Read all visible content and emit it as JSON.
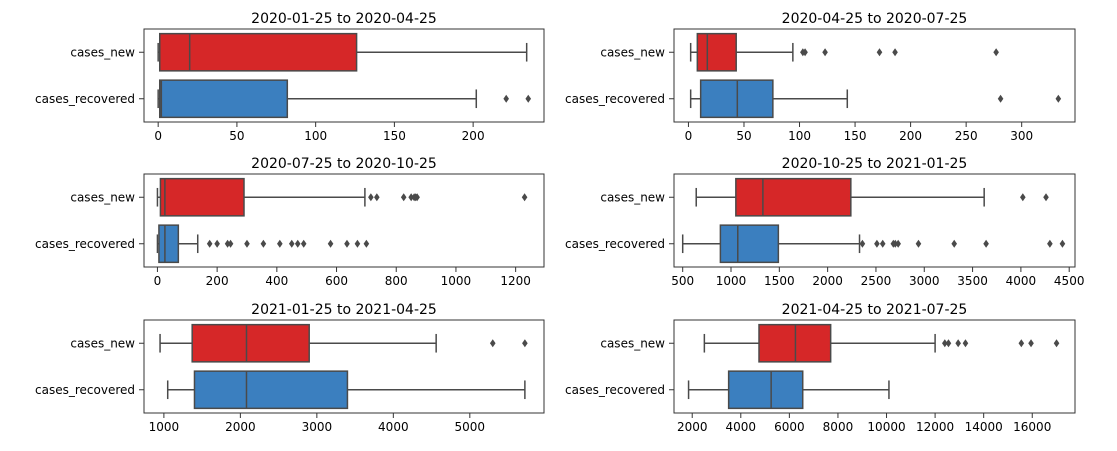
{
  "figure": {
    "category_labels": [
      "cases_new",
      "cases_recovered"
    ]
  },
  "colors": {
    "cases_new": "#d62728",
    "cases_recovered": "#3b7fbf",
    "line": "#4a4a4a",
    "frame": "#333333"
  },
  "chart_data": [
    {
      "type": "box",
      "title": "2020-01-25 to 2020-04-25",
      "xlim": [
        -9,
        245
      ],
      "xticks": [
        0,
        50,
        100,
        150,
        200
      ],
      "grid": false,
      "categories": [
        "cases_new",
        "cases_recovered"
      ],
      "series": [
        {
          "name": "cases_new",
          "min": 0,
          "q1": 1,
          "median": 20,
          "q3": 126,
          "max": 234,
          "outliers": []
        },
        {
          "name": "cases_recovered",
          "min": 0,
          "q1": 1,
          "median": 2,
          "q3": 82,
          "max": 202,
          "outliers": [
            221,
            235
          ]
        }
      ]
    },
    {
      "type": "box",
      "title": "2020-04-25 to 2020-07-25",
      "xlim": [
        -13,
        348
      ],
      "xticks": [
        0,
        50,
        100,
        150,
        200,
        250,
        300
      ],
      "grid": false,
      "categories": [
        "cases_new",
        "cases_recovered"
      ],
      "series": [
        {
          "name": "cases_new",
          "min": 2,
          "q1": 8,
          "median": 17,
          "q3": 43,
          "max": 94,
          "outliers": [
            103,
            105,
            123,
            172,
            186,
            277
          ]
        },
        {
          "name": "cases_recovered",
          "min": 2,
          "q1": 11,
          "median": 44,
          "q3": 76,
          "max": 143,
          "outliers": [
            281,
            333
          ]
        }
      ]
    },
    {
      "type": "box",
      "title": "2020-07-25 to 2020-10-25",
      "xlim": [
        -45,
        1295
      ],
      "xticks": [
        0,
        200,
        400,
        600,
        800,
        1000,
        1200
      ],
      "grid": false,
      "categories": [
        "cases_new",
        "cases_recovered"
      ],
      "series": [
        {
          "name": "cases_new",
          "min": 0,
          "q1": 10,
          "median": 25,
          "q3": 290,
          "max": 695,
          "outliers": [
            715,
            735,
            825,
            850,
            860,
            865,
            870,
            1230
          ]
        },
        {
          "name": "cases_recovered",
          "min": 0,
          "q1": 5,
          "median": 25,
          "q3": 70,
          "max": 135,
          "outliers": [
            175,
            200,
            235,
            245,
            300,
            355,
            410,
            450,
            470,
            490,
            580,
            635,
            670,
            700
          ]
        }
      ]
    },
    {
      "type": "box",
      "title": "2020-10-25 to 2021-01-25",
      "xlim": [
        410,
        4560
      ],
      "xticks": [
        500,
        1000,
        1500,
        2000,
        2500,
        3000,
        3500,
        4000,
        4500
      ],
      "grid": false,
      "categories": [
        "cases_new",
        "cases_recovered"
      ],
      "series": [
        {
          "name": "cases_new",
          "min": 640,
          "q1": 1050,
          "median": 1330,
          "q3": 2240,
          "max": 3620,
          "outliers": [
            4020,
            4260
          ]
        },
        {
          "name": "cases_recovered",
          "min": 500,
          "q1": 890,
          "median": 1070,
          "q3": 1490,
          "max": 2330,
          "outliers": [
            2360,
            2510,
            2570,
            2680,
            2700,
            2730,
            2940,
            3310,
            3640,
            4300,
            4430
          ]
        }
      ]
    },
    {
      "type": "box",
      "title": "2021-01-25 to 2021-04-25",
      "xlim": [
        740,
        5970
      ],
      "xticks": [
        1000,
        2000,
        3000,
        4000,
        5000
      ],
      "grid": false,
      "categories": [
        "cases_new",
        "cases_recovered"
      ],
      "series": [
        {
          "name": "cases_new",
          "min": 950,
          "q1": 1370,
          "median": 2080,
          "q3": 2900,
          "max": 4560,
          "outliers": [
            5300,
            5720
          ]
        },
        {
          "name": "cases_recovered",
          "min": 1050,
          "q1": 1400,
          "median": 2080,
          "q3": 3400,
          "max": 5720,
          "outliers": []
        }
      ]
    },
    {
      "type": "box",
      "title": "2021-04-25 to 2021-07-25",
      "xlim": [
        1250,
        17760
      ],
      "xticks": [
        2000,
        4000,
        6000,
        8000,
        10000,
        12000,
        14000,
        16000
      ],
      "grid": false,
      "categories": [
        "cases_new",
        "cases_recovered"
      ],
      "series": [
        {
          "name": "cases_new",
          "min": 2500,
          "q1": 4750,
          "median": 6250,
          "q3": 7700,
          "max": 12000,
          "outliers": [
            12400,
            12550,
            12950,
            13250,
            15550,
            15950,
            17000
          ]
        },
        {
          "name": "cases_recovered",
          "min": 1850,
          "q1": 3500,
          "median": 5250,
          "q3": 6550,
          "max": 10100,
          "outliers": []
        }
      ]
    }
  ]
}
